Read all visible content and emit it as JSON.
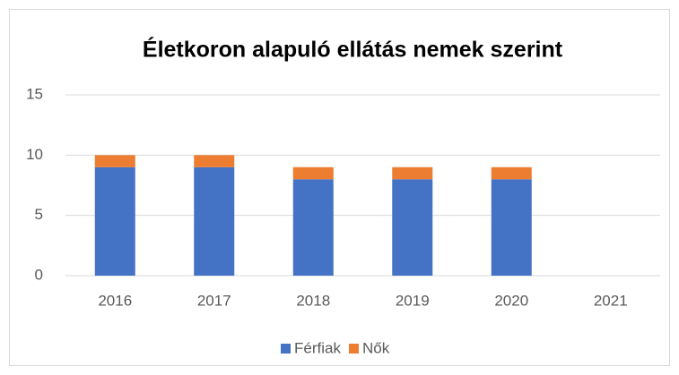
{
  "chart_data": {
    "type": "stacked_bar",
    "title": "Életkoron alapuló ellátás nemek szerint",
    "categories": [
      "2016",
      "2017",
      "2018",
      "2019",
      "2020",
      "2021"
    ],
    "series": [
      {
        "name": "Férfiak",
        "color": "#4472c4",
        "values": [
          9,
          9,
          8,
          8,
          8,
          null
        ]
      },
      {
        "name": "Nők",
        "color": "#ed7d31",
        "values": [
          1,
          1,
          1,
          1,
          1,
          null
        ]
      }
    ],
    "ylim": [
      0,
      15
    ],
    "yticks": [
      0,
      5,
      10,
      15
    ],
    "grid": true,
    "legend": "bottom"
  }
}
